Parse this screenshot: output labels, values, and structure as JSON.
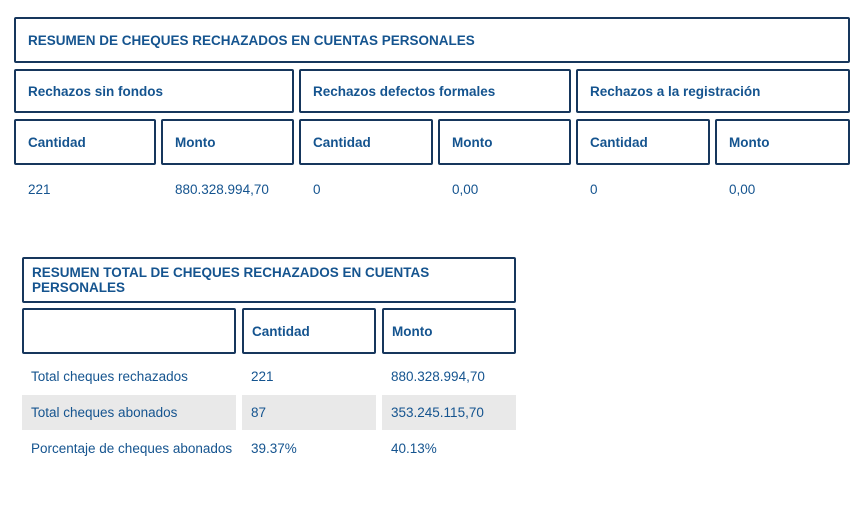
{
  "colors": {
    "text": "#15548f",
    "border": "#16365c",
    "shade": "#e9e9e9"
  },
  "table1": {
    "title": "RESUMEN DE CHEQUES RECHAZADOS EN CUENTAS PERSONALES",
    "groups": [
      "Rechazos sin fondos",
      "Rechazos defectos formales",
      "Rechazos a la registración"
    ],
    "columns": [
      "Cantidad",
      "Monto",
      "Cantidad",
      "Monto",
      "Cantidad",
      "Monto"
    ],
    "values": [
      "221",
      "880.328.994,70",
      "0",
      "0,00",
      "0",
      "0,00"
    ]
  },
  "table2": {
    "title": "RESUMEN TOTAL DE CHEQUES RECHAZADOS EN CUENTAS PERSONALES",
    "columns": [
      "",
      "Cantidad",
      "Monto"
    ],
    "rows": [
      {
        "label": "Total cheques rechazados",
        "cantidad": "221",
        "monto": "880.328.994,70"
      },
      {
        "label": "Total cheques abonados",
        "cantidad": "87",
        "monto": "353.245.115,70"
      },
      {
        "label": "Porcentaje de cheques abonados",
        "cantidad": "39.37%",
        "monto": "40.13%"
      }
    ]
  }
}
